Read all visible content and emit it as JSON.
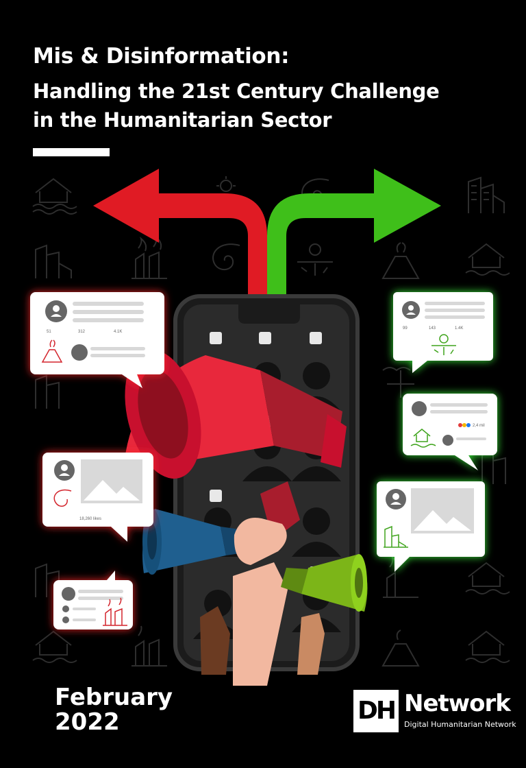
{
  "title": {
    "line1": "Mis & Disinformation:",
    "line2": "Handling the 21st Century Challenge",
    "line3": "in the Humanitarian Sector"
  },
  "date": {
    "month": "February",
    "year": "2022"
  },
  "logo": {
    "mark": "DH",
    "word": "Network",
    "subtitle": "Digital Humanitarian Network"
  },
  "posts": {
    "left_top": {
      "replies": "51",
      "reposts": "312",
      "likes": "4.1K"
    },
    "left_mid": {
      "likes": "18,260 likes"
    },
    "right_top": {
      "replies": "99",
      "reposts": "143",
      "likes": "1.4K"
    },
    "right_mid": {
      "reactions": "2,4 mil"
    }
  },
  "colors": {
    "background": "#000000",
    "misinfo_red": "#e01b24",
    "verified_green": "#3fbf1a",
    "megaphone_red": "#e8283c",
    "megaphone_blue": "#1f5f8f",
    "megaphone_green": "#7cb518"
  },
  "icons": [
    "red-arrow-icon",
    "green-arrow-icon",
    "phone-icon",
    "megaphone-icon",
    "volcano-icon",
    "cyclone-icon",
    "wildfire-icon",
    "drought-icon",
    "flood-house-icon",
    "collapsed-building-icon",
    "avatar-icon",
    "image-placeholder-icon"
  ]
}
